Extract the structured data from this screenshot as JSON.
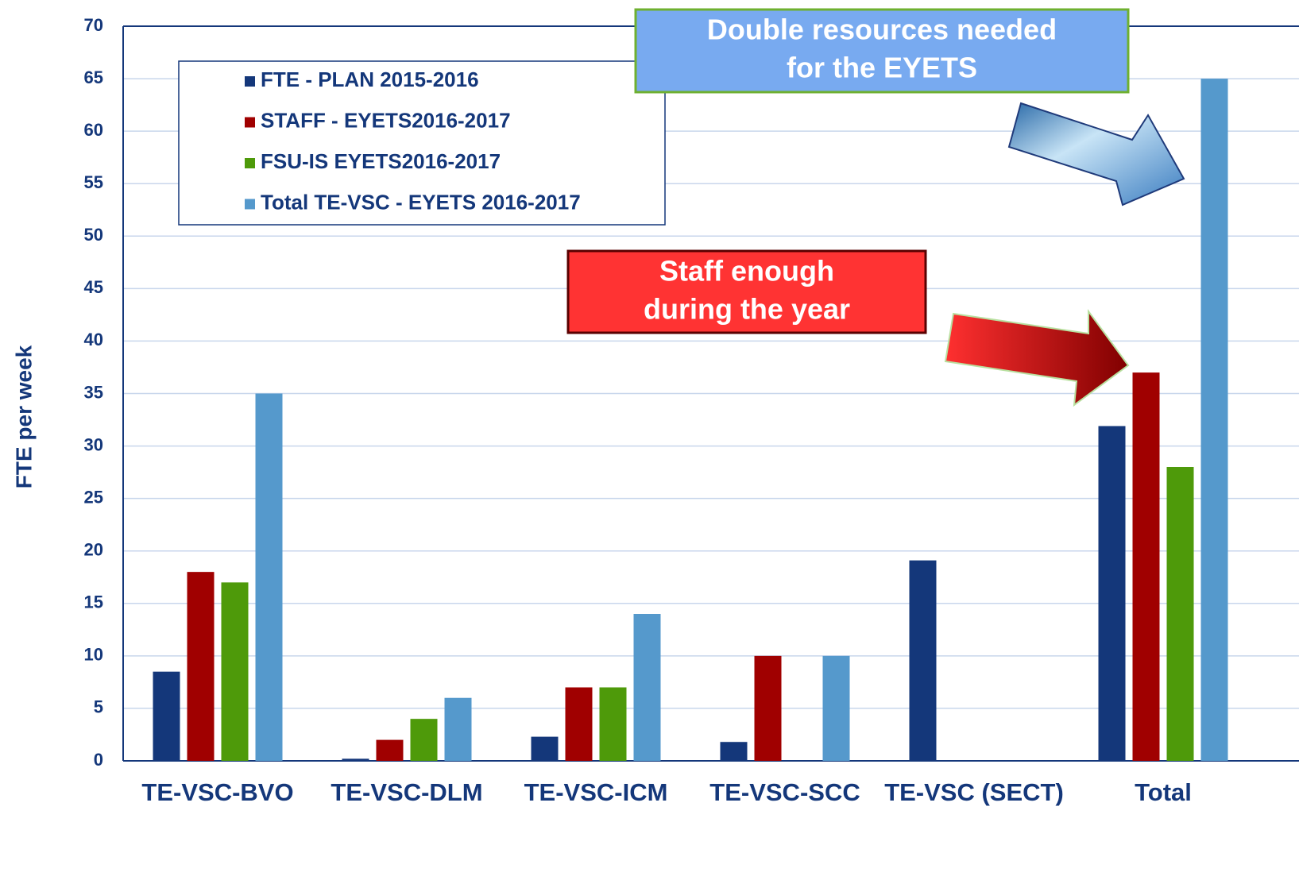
{
  "chart_data": {
    "type": "bar",
    "y_label": "FTE per week",
    "categories": [
      "TE-VSC-BVO",
      "TE-VSC-DLM",
      "TE-VSC-ICM",
      "TE-VSC-SCC",
      "TE-VSC (SECT)",
      "Total"
    ],
    "series": [
      {
        "name": "FTE - PLAN 2015-2016",
        "color": "#14377a",
        "values": [
          8.5,
          0.2,
          2.3,
          1.8,
          19.1,
          31.9
        ]
      },
      {
        "name": "STAFF - EYETS2016-2017",
        "color": "#a00000",
        "values": [
          18,
          2,
          7,
          10,
          null,
          37
        ]
      },
      {
        "name": "FSU-IS EYETS2016-2017",
        "color": "#4e9a0a",
        "values": [
          17,
          4,
          7,
          null,
          null,
          28
        ]
      },
      {
        "name": "Total TE-VSC - EYETS 2016-2017",
        "color": "#5599cc",
        "values": [
          35,
          6,
          14,
          10,
          null,
          65
        ]
      }
    ],
    "ylim": [
      0,
      70
    ],
    "yticks": [
      0,
      5,
      10,
      15,
      20,
      25,
      30,
      35,
      40,
      45,
      50,
      55,
      60,
      65,
      70
    ],
    "grid": true,
    "annotations": [
      {
        "lines": [
          "Double resources needed",
          "for the EYETS"
        ]
      },
      {
        "lines": [
          "Staff enough",
          "during the year"
        ]
      }
    ]
  }
}
